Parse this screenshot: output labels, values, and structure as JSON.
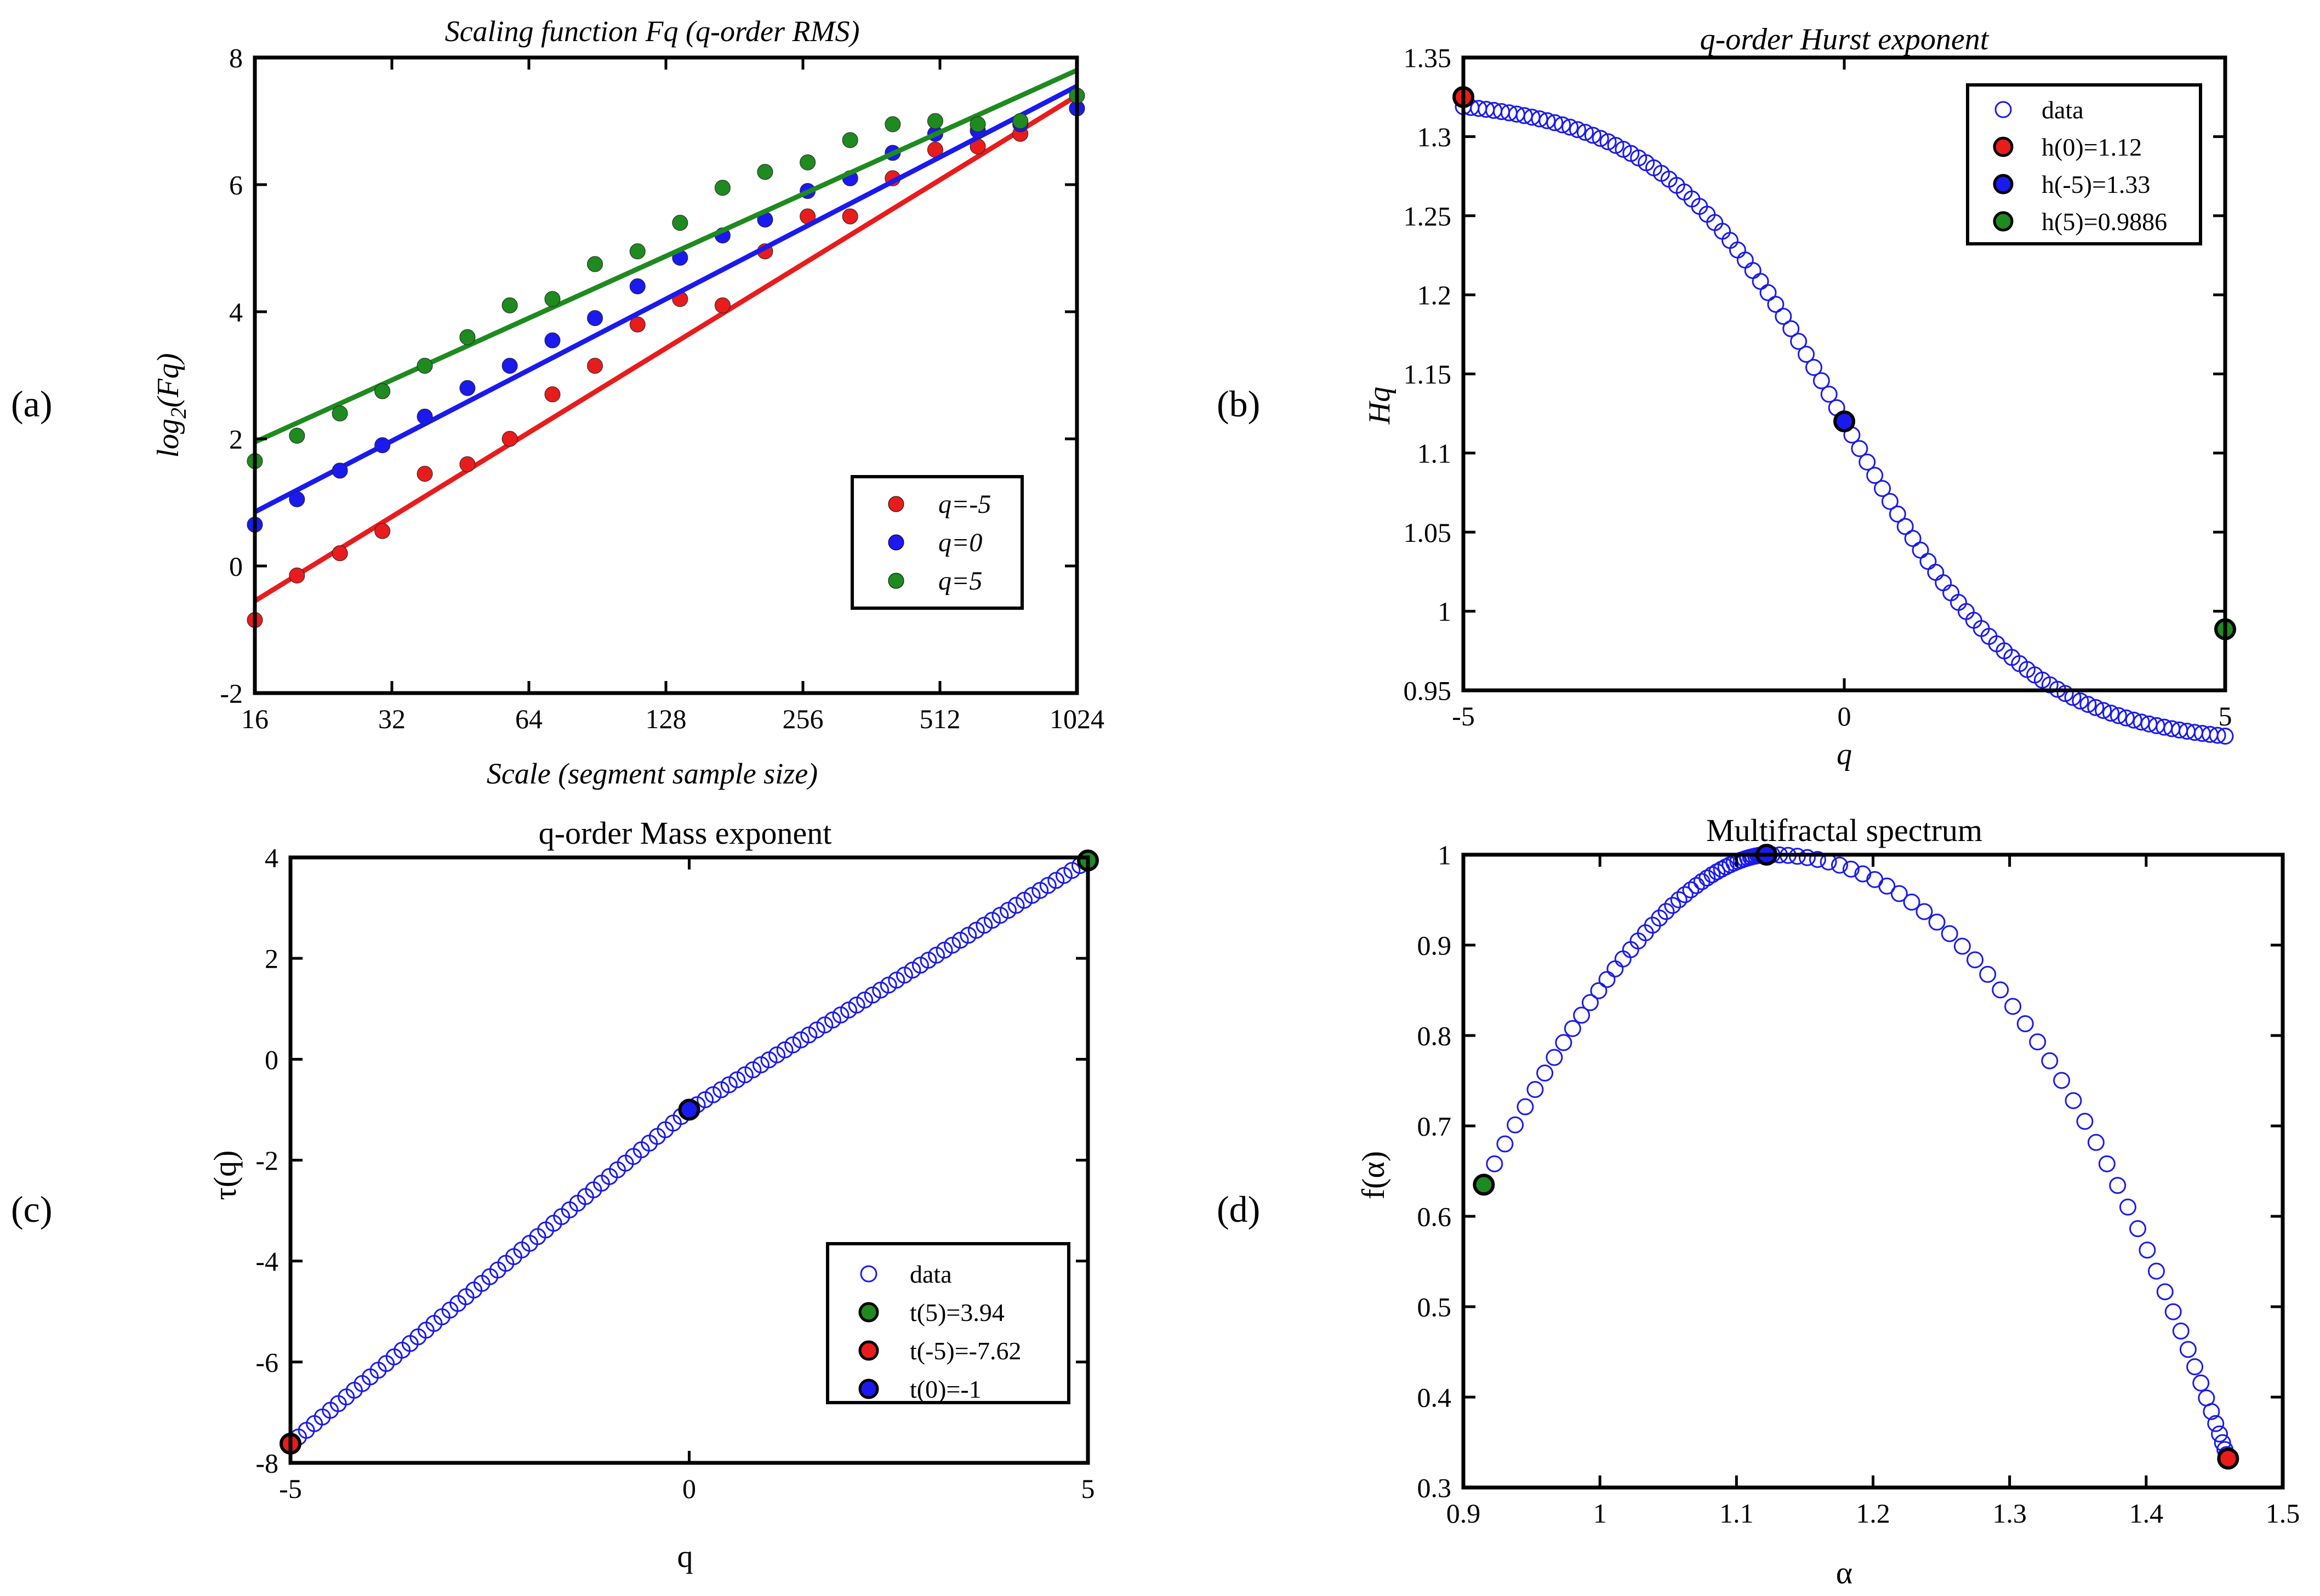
{
  "figure": {
    "panel_labels": [
      "(a)",
      "(b)",
      "(c)",
      "(d)"
    ]
  },
  "colors": {
    "red": "#e81c1c",
    "blue": "#1a1aee",
    "green": "#1f8a1f",
    "hollow_marker": "#1a1aee",
    "axis": "#000000"
  },
  "chart_data": [
    {
      "id": "a",
      "type": "scatter",
      "title": "Scaling function Fq (q-order RMS)",
      "xlabel": "Scale (segment sample size)",
      "ylabel_main": "log",
      "ylabel_sub": "2",
      "ylabel_tail": "(Fq)",
      "xscale": "log2",
      "xlim": [
        16,
        1024
      ],
      "ylim": [
        -2,
        8
      ],
      "xticks": [
        16,
        32,
        64,
        128,
        256,
        512,
        1024
      ],
      "xtick_labels": [
        "16",
        "32",
        "64",
        "128",
        "256",
        "512",
        "1024"
      ],
      "yticks": [
        -2,
        0,
        2,
        4,
        6,
        8
      ],
      "ytick_labels": [
        "-2",
        "0",
        "2",
        "4",
        "6",
        "8"
      ],
      "x": [
        16,
        19.8,
        24.6,
        30.5,
        37.8,
        46.9,
        58.1,
        72.1,
        89.4,
        110.9,
        137.5,
        170.5,
        211.4,
        262.2,
        325.1,
        403.2,
        500.0,
        620.0,
        768.9,
        1024
      ],
      "series": [
        {
          "name": "q=-5",
          "color": "red",
          "values": [
            -0.85,
            -0.15,
            0.2,
            0.55,
            1.45,
            1.6,
            2.0,
            2.7,
            3.15,
            3.8,
            4.2,
            4.1,
            4.95,
            5.5,
            5.5,
            6.1,
            6.55,
            6.6,
            6.8,
            7.2
          ],
          "fit": [
            -0.55,
            7.4
          ]
        },
        {
          "name": "q=0",
          "color": "blue",
          "values": [
            0.65,
            1.05,
            1.5,
            1.9,
            2.35,
            2.8,
            3.15,
            3.55,
            3.9,
            4.4,
            4.85,
            5.2,
            5.45,
            5.9,
            6.1,
            6.5,
            6.8,
            6.85,
            6.95,
            7.2
          ],
          "fit": [
            0.85,
            7.55
          ]
        },
        {
          "name": "q=5",
          "color": "green",
          "values": [
            1.65,
            2.05,
            2.4,
            2.75,
            3.15,
            3.6,
            4.1,
            4.2,
            4.75,
            4.95,
            5.4,
            5.95,
            6.2,
            6.35,
            6.7,
            6.95,
            7.0,
            6.95,
            7.0,
            7.4
          ],
          "fit": [
            1.95,
            7.8
          ]
        }
      ],
      "legend": {
        "placement": "bottom-right",
        "items": [
          "q=-5",
          "q=0",
          "q=5"
        ]
      }
    },
    {
      "id": "b",
      "type": "scatter",
      "title": "q-order Hurst exponent",
      "xlabel": "q",
      "ylabel": "Hq",
      "xlim": [
        -5,
        5
      ],
      "ylim": [
        0.95,
        1.35
      ],
      "xticks": [
        -5,
        0,
        5
      ],
      "xtick_labels": [
        "-5",
        "0",
        "5"
      ],
      "yticks": [
        0.95,
        1,
        1.05,
        1.1,
        1.15,
        1.2,
        1.25,
        1.3,
        1.35
      ],
      "ytick_labels": [
        "0.95",
        "1",
        "1.05",
        "1.1",
        "1.15",
        "1.2",
        "1.25",
        "1.3",
        "1.35"
      ],
      "data_series": {
        "name": "data",
        "q_range": [
          -5,
          5
        ],
        "count": 101,
        "model": "h",
        "h_max": 1.35,
        "h_min": 0.965,
        "h_mid": 1.12,
        "slope": 0.5
      },
      "highlights": [
        {
          "label": "h(0)=1.12",
          "x": 0,
          "y": 1.12,
          "color": "red"
        },
        {
          "label": "h(-5)=1.33",
          "x": -5,
          "y": 1.325,
          "color": "blue"
        },
        {
          "label": "h(5)=0.9886",
          "x": 5,
          "y": 0.9886,
          "color": "green"
        }
      ],
      "highlight_colors_on_plot": {
        "-5": "red",
        "0": "blue",
        "5": "green"
      },
      "legend": {
        "placement": "top-right",
        "items": [
          "data",
          "h(0)=1.12",
          "h(-5)=1.33",
          "h(5)=0.9886"
        ]
      }
    },
    {
      "id": "c",
      "type": "scatter",
      "title": "q-order Mass exponent",
      "xlabel": "q",
      "ylabel": "τ(q)",
      "xlim": [
        -5,
        5
      ],
      "ylim": [
        -8,
        4
      ],
      "xticks": [
        -5,
        0,
        5
      ],
      "xtick_labels": [
        "-5",
        "0",
        "5"
      ],
      "yticks": [
        -8,
        -6,
        -4,
        -2,
        0,
        2,
        4
      ],
      "ytick_labels": [
        "-8",
        "-6",
        "-4",
        "-2",
        "0",
        "2",
        "4"
      ],
      "data_series": {
        "name": "data",
        "q_range": [
          -5,
          5
        ],
        "count": 101,
        "model": "tau"
      },
      "highlights": [
        {
          "label": "t(5)=3.94",
          "x": 5,
          "y": 3.94,
          "color": "green"
        },
        {
          "label": "t(-5)=-7.62",
          "x": -5,
          "y": -7.62,
          "color": "red"
        },
        {
          "label": "t(0)=-1",
          "x": 0,
          "y": -1,
          "color": "blue"
        }
      ],
      "highlight_colors_on_plot": {
        "-5": "red",
        "0": "blue",
        "5": "green"
      },
      "legend": {
        "placement": "bottom-right",
        "items": [
          "data",
          "t(5)=3.94",
          "t(-5)=-7.62",
          "t(0)=-1"
        ]
      }
    },
    {
      "id": "d",
      "type": "scatter",
      "title": "Multifractal spectrum",
      "xlabel": "α",
      "ylabel": "f(α)",
      "xlim": [
        0.9,
        1.5
      ],
      "ylim": [
        0.3,
        1.0
      ],
      "xticks": [
        0.9,
        1,
        1.1,
        1.2,
        1.3,
        1.4,
        1.5
      ],
      "xtick_labels": [
        "0.9",
        "1",
        "1.1",
        "1.2",
        "1.3",
        "1.4",
        "1.5"
      ],
      "yticks": [
        0.3,
        0.4,
        0.5,
        0.6,
        0.7,
        0.8,
        0.9,
        1
      ],
      "ytick_labels": [
        "0.3",
        "0.4",
        "0.5",
        "0.6",
        "0.7",
        "0.8",
        "0.9",
        "1"
      ],
      "data_series": {
        "name": "data",
        "q_range": [
          -5,
          5
        ],
        "count": 101,
        "model": "spectrum"
      },
      "highlights": [
        {
          "x": 0.915,
          "y": 0.635,
          "color": "green"
        },
        {
          "x": 1.122,
          "y": 1.0,
          "color": "blue"
        },
        {
          "x": 1.46,
          "y": 0.332,
          "color": "red"
        }
      ]
    }
  ]
}
